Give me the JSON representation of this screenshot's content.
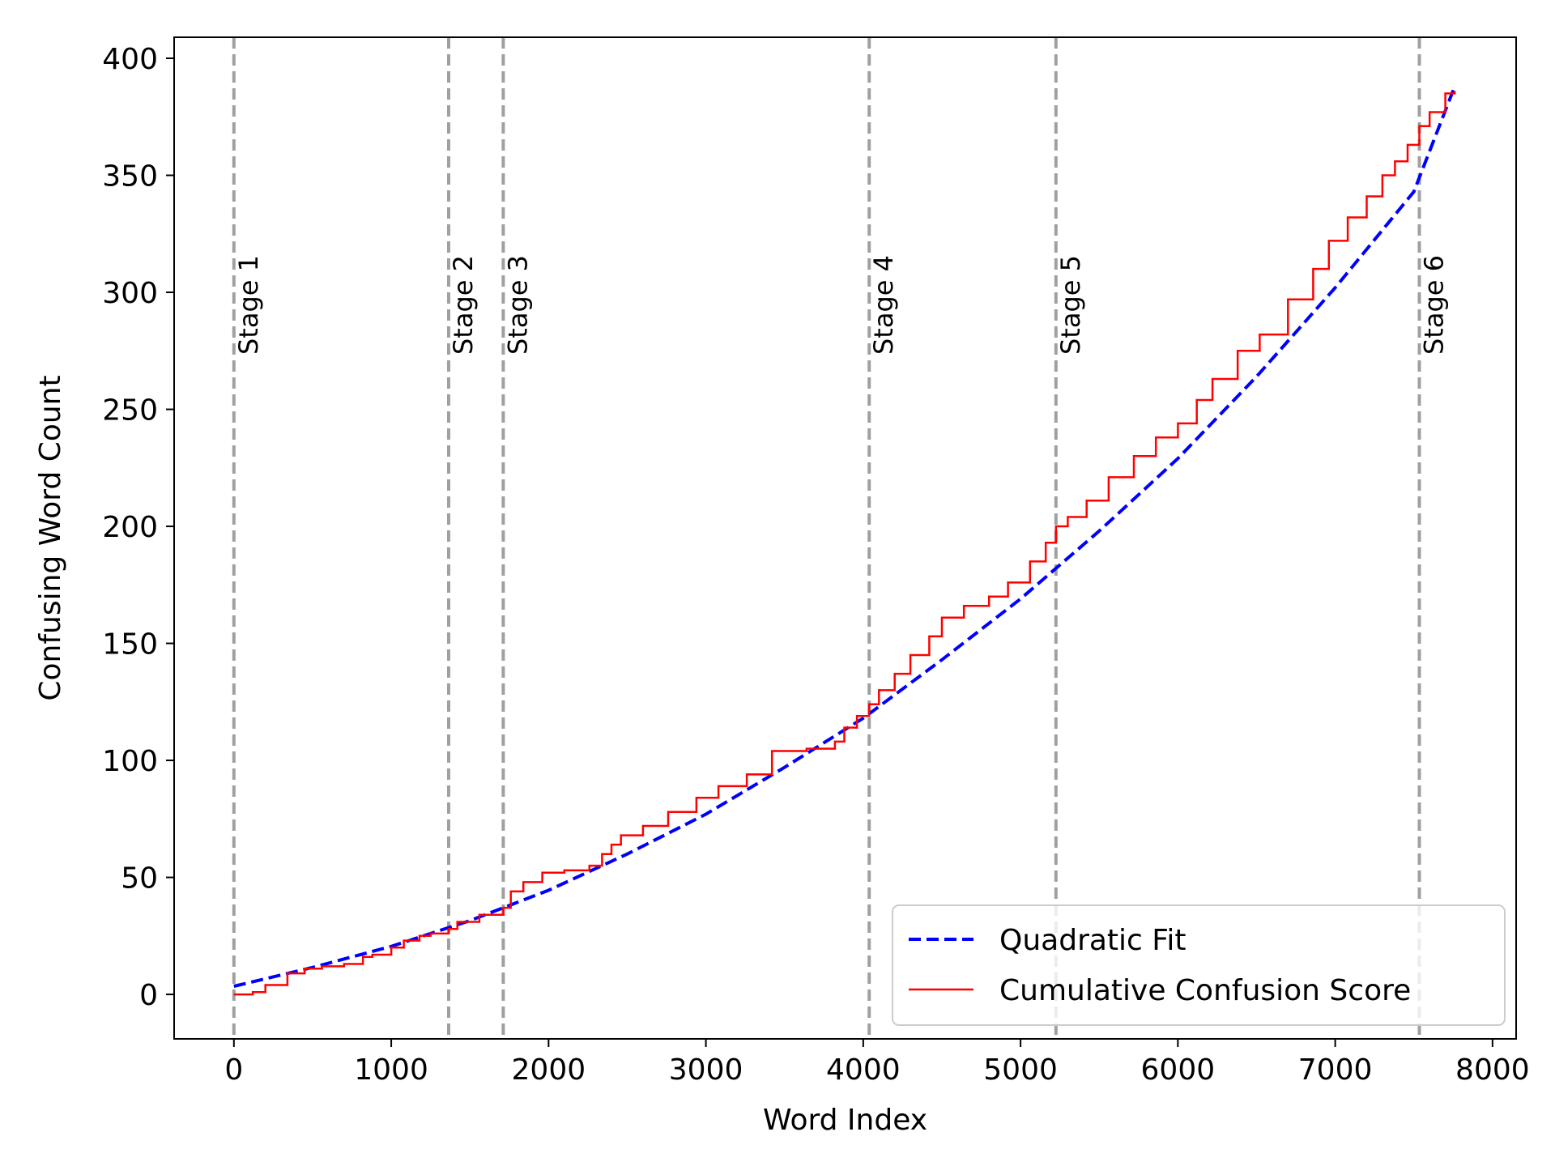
{
  "chart_data": {
    "type": "line",
    "xlabel": "Word Index",
    "ylabel": "Confusing Word Count",
    "xlim": [
      -380,
      8150
    ],
    "ylim": [
      -19,
      409
    ],
    "xticks": [
      0,
      1000,
      2000,
      3000,
      4000,
      5000,
      6000,
      7000,
      8000
    ],
    "yticks": [
      0,
      50,
      100,
      150,
      200,
      250,
      300,
      350,
      400
    ],
    "grid": false,
    "legend_placement": "bottom-right",
    "stages": [
      {
        "label": "Stage 1",
        "x": 0
      },
      {
        "label": "Stage 2",
        "x": 1365
      },
      {
        "label": "Stage 3",
        "x": 1712
      },
      {
        "label": "Stage 4",
        "x": 4038
      },
      {
        "label": "Stage 5",
        "x": 5225
      },
      {
        "label": "Stage 6",
        "x": 7535
      }
    ],
    "stage_line_color": "#a0a0a0",
    "series": [
      {
        "name": "Quadratic Fit",
        "style": "dashed",
        "color": "#0000ff",
        "x": [
          0,
          500,
          1000,
          1500,
          2000,
          2500,
          3000,
          3500,
          4000,
          4500,
          5000,
          5500,
          6000,
          6500,
          7000,
          7500,
          7760
        ],
        "y": [
          3.5,
          11.5,
          20.5,
          31.5,
          44.5,
          60,
          77,
          97,
          118,
          143,
          169,
          198,
          229,
          264,
          302,
          343,
          388
        ]
      },
      {
        "name": "Cumulative Confusion Score",
        "style": "solid",
        "color": "#ff0000",
        "x": [
          0,
          120,
          200,
          340,
          450,
          560,
          700,
          820,
          880,
          1000,
          1080,
          1180,
          1250,
          1365,
          1420,
          1560,
          1712,
          1760,
          1840,
          1960,
          2100,
          2260,
          2340,
          2400,
          2460,
          2600,
          2760,
          2940,
          3080,
          3260,
          3420,
          3640,
          3820,
          3880,
          3960,
          4038,
          4100,
          4200,
          4300,
          4420,
          4500,
          4640,
          4800,
          4920,
          5060,
          5160,
          5225,
          5300,
          5420,
          5560,
          5720,
          5860,
          6000,
          6120,
          6220,
          6380,
          6520,
          6700,
          6860,
          6960,
          7080,
          7200,
          7300,
          7380,
          7460,
          7535,
          7600,
          7700,
          7760
        ],
        "y": [
          0,
          1,
          4,
          9,
          11,
          12,
          13,
          16,
          17,
          20,
          23,
          25,
          26,
          28,
          31,
          34,
          37,
          44,
          48,
          52,
          53,
          55,
          60,
          64,
          68,
          72,
          78,
          84,
          89,
          94,
          104,
          105,
          108,
          114,
          119,
          124,
          130,
          137,
          145,
          153,
          161,
          166,
          170,
          176,
          185,
          193,
          200,
          204,
          211,
          221,
          230,
          238,
          244,
          254,
          263,
          275,
          282,
          297,
          310,
          322,
          332,
          341,
          350,
          356,
          363,
          371,
          377,
          385,
          386
        ]
      }
    ]
  }
}
